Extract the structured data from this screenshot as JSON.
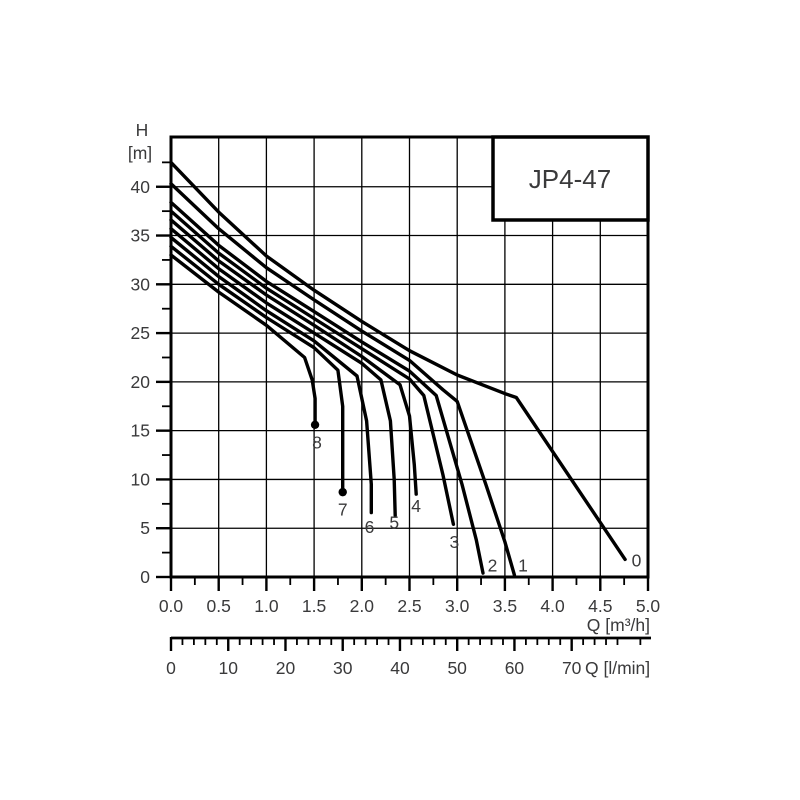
{
  "colors": {
    "line": "#000000",
    "text": "#3a3a3b",
    "background": "#ffffff"
  },
  "title_box": {
    "label": "JP4-47"
  },
  "y_axis": {
    "title_top": "H",
    "title_bottom": "[m]",
    "tick_labels": [
      "0",
      "5",
      "10",
      "15",
      "20",
      "25",
      "30",
      "35",
      "40"
    ],
    "min": 0,
    "max": 45.1,
    "major_step": 5,
    "minor_step": 2.5
  },
  "x_axis": {
    "title": "Q [m³/h]",
    "tick_labels": [
      "0.0",
      "0.5",
      "1.0",
      "1.5",
      "2.0",
      "2.5",
      "3.0",
      "3.5",
      "4.0",
      "4.5",
      "5.0"
    ],
    "min": 0,
    "max": 5,
    "major_step": 0.5,
    "minor_step": 0.25
  },
  "flow_axis": {
    "title": "Q [l/min]",
    "tick_labels": [
      "0",
      "10",
      "20",
      "30",
      "40",
      "50",
      "60",
      "70"
    ],
    "major_step": 10,
    "minor_step": 2,
    "minor_max": 82,
    "lmin_per_m3h": 16.6667
  },
  "chart_data": {
    "type": "line",
    "title": "JP4-47",
    "xlabel": "Q [m³/h]",
    "ylabel": "H [m]",
    "xlim": [
      0,
      5
    ],
    "ylim": [
      0,
      45.1
    ],
    "grid": true,
    "x_grid_step": 0.5,
    "y_grid_step": 5,
    "series": [
      {
        "name": "0",
        "points": [
          [
            0,
            42.5
          ],
          [
            0.5,
            37.4
          ],
          [
            1.0,
            32.9
          ],
          [
            1.5,
            29.4
          ],
          [
            2.0,
            26.2
          ],
          [
            2.5,
            23.2
          ],
          [
            3.0,
            20.7
          ],
          [
            3.5,
            18.8
          ],
          [
            3.62,
            18.4
          ],
          [
            4.76,
            1.8
          ]
        ]
      },
      {
        "name": "1",
        "points": [
          [
            0,
            40.3
          ],
          [
            0.5,
            35.7
          ],
          [
            1.0,
            31.7
          ],
          [
            1.5,
            28.4
          ],
          [
            2.0,
            25.2
          ],
          [
            2.5,
            22.2
          ],
          [
            2.85,
            19.2
          ],
          [
            3.0,
            18.0
          ],
          [
            3.3,
            9.5
          ],
          [
            3.5,
            3.6
          ],
          [
            3.6,
            0.2
          ]
        ]
      },
      {
        "name": "2",
        "points": [
          [
            0,
            38.4
          ],
          [
            0.5,
            34.0
          ],
          [
            1.0,
            30.3
          ],
          [
            1.5,
            27.2
          ],
          [
            2.0,
            24.1
          ],
          [
            2.5,
            21.1
          ],
          [
            2.78,
            18.6
          ],
          [
            3.05,
            9.5
          ],
          [
            3.2,
            3.8
          ],
          [
            3.27,
            0.4
          ]
        ]
      },
      {
        "name": "3",
        "points": [
          [
            0,
            37.5
          ],
          [
            0.5,
            33.2
          ],
          [
            1.0,
            29.6
          ],
          [
            1.5,
            26.5
          ],
          [
            2.0,
            23.4
          ],
          [
            2.5,
            20.3
          ],
          [
            2.65,
            18.6
          ],
          [
            2.85,
            10.5
          ],
          [
            2.96,
            5.4
          ]
        ]
      },
      {
        "name": "4",
        "points": [
          [
            0,
            36.6
          ],
          [
            0.5,
            32.4
          ],
          [
            1.0,
            28.9
          ],
          [
            1.5,
            25.8
          ],
          [
            2.0,
            22.6
          ],
          [
            2.4,
            19.7
          ],
          [
            2.5,
            16.5
          ],
          [
            2.55,
            11.5
          ],
          [
            2.57,
            8.5
          ]
        ]
      },
      {
        "name": "5",
        "points": [
          [
            0,
            35.7
          ],
          [
            0.5,
            31.6
          ],
          [
            1.0,
            28.1
          ],
          [
            1.5,
            25.0
          ],
          [
            2.0,
            21.9
          ],
          [
            2.2,
            20.2
          ],
          [
            2.3,
            16.0
          ],
          [
            2.34,
            10.0
          ],
          [
            2.35,
            6.3
          ]
        ]
      },
      {
        "name": "6",
        "points": [
          [
            0,
            34.8
          ],
          [
            0.5,
            30.8
          ],
          [
            1.0,
            27.3
          ],
          [
            1.5,
            24.2
          ],
          [
            1.95,
            20.6
          ],
          [
            2.05,
            16.0
          ],
          [
            2.1,
            9.5
          ],
          [
            2.1,
            6.6
          ]
        ]
      },
      {
        "name": "7",
        "points": [
          [
            0,
            33.9
          ],
          [
            0.5,
            30.0
          ],
          [
            1.0,
            26.6
          ],
          [
            1.5,
            23.5
          ],
          [
            1.75,
            21.2
          ],
          [
            1.8,
            17.5
          ],
          [
            1.8,
            8.7
          ]
        ]
      },
      {
        "name": "8",
        "points": [
          [
            0,
            33.0
          ],
          [
            0.5,
            29.2
          ],
          [
            1.0,
            25.8
          ],
          [
            1.4,
            22.5
          ],
          [
            1.48,
            20.2
          ],
          [
            1.51,
            18.3
          ],
          [
            1.51,
            15.6
          ]
        ]
      }
    ],
    "end_dots": [
      {
        "series": "7",
        "q": 1.8,
        "h": 8.7
      },
      {
        "series": "8",
        "q": 1.51,
        "h": 15.6
      }
    ],
    "curve_labels": [
      {
        "text": "0",
        "q": 4.88,
        "h": 1.7
      },
      {
        "text": "1",
        "q": 3.69,
        "h": 1.2
      },
      {
        "text": "2",
        "q": 3.37,
        "h": 1.2
      },
      {
        "text": "3",
        "q": 2.97,
        "h": 3.6
      },
      {
        "text": "4",
        "q": 2.57,
        "h": 7.3
      },
      {
        "text": "5",
        "q": 2.34,
        "h": 5.6
      },
      {
        "text": "6",
        "q": 2.08,
        "h": 5.1
      },
      {
        "text": "7",
        "q": 1.8,
        "h": 6.9
      },
      {
        "text": "8",
        "q": 1.53,
        "h": 13.8
      }
    ]
  }
}
